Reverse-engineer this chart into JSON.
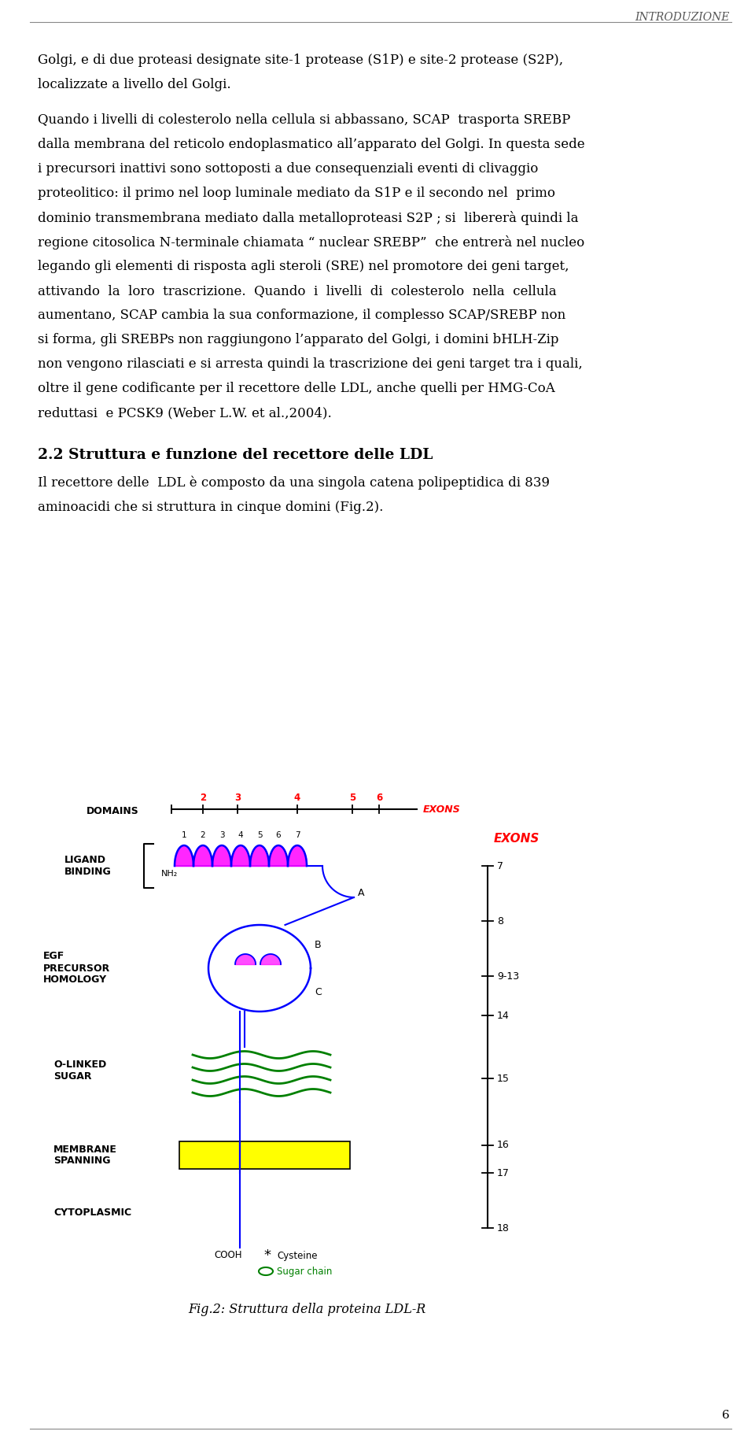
{
  "title_header": "INTRODUZIONE",
  "page_number": "6",
  "para1_lines": [
    "Golgi, e di due proteasi designate site-1 protease (S1P) e site-2 protease (S2P),",
    "localizzate a livello del Golgi."
  ],
  "para2_lines": [
    "Quando i livelli di colesterolo nella cellula si abbassano, SCAP  trasporta SREBP",
    "dalla membrana del reticolo endoplasmatico all’apparato del Golgi. In questa sede",
    "i precursori inattivi sono sottoposti a due consequenziali eventi di clivaggio",
    "proteolitico: il primo nel loop luminale mediato da S1P e il secondo nel  primo",
    "dominio transmembrana mediato dalla metalloproteasi S2P ; si  libererà quindi la",
    "regione citosolica N-terminale chiamata “ nuclear SREBP”  che entrerà nel nucleo",
    "legando gli elementi di risposta agli steroli (SRE) nel promotore dei geni target,",
    "attivando  la  loro  trascrizione.  Quando  i  livelli  di  colesterolo  nella  cellula",
    "aumentano, SCAP cambia la sua conformazione, il complesso SCAP/SREBP non",
    "si forma, gli SREBPs non raggiungono l’apparato del Golgi, i domini bHLH-Zip",
    "non vengono rilasciati e si arresta quindi la trascrizione dei geni target tra i quali,",
    "oltre il gene codificante per il recettore delle LDL, anche quelli per HMG-CoA",
    "reduttasi  e PCSK9 (Weber L.W. et al.,2004)."
  ],
  "section_heading": "2.2 Struttura e funzione del recettore delle LDL",
  "section_text": [
    "Il recettore delle  LDL è composto da una singola catena polipeptidica di 839",
    "aminoacidi che si struttura in cinque domini (Fig.2)."
  ],
  "caption": "Fig.2: Struttura della proteina LDL-R",
  "background_color": "#ffffff",
  "text_color": "#000000"
}
